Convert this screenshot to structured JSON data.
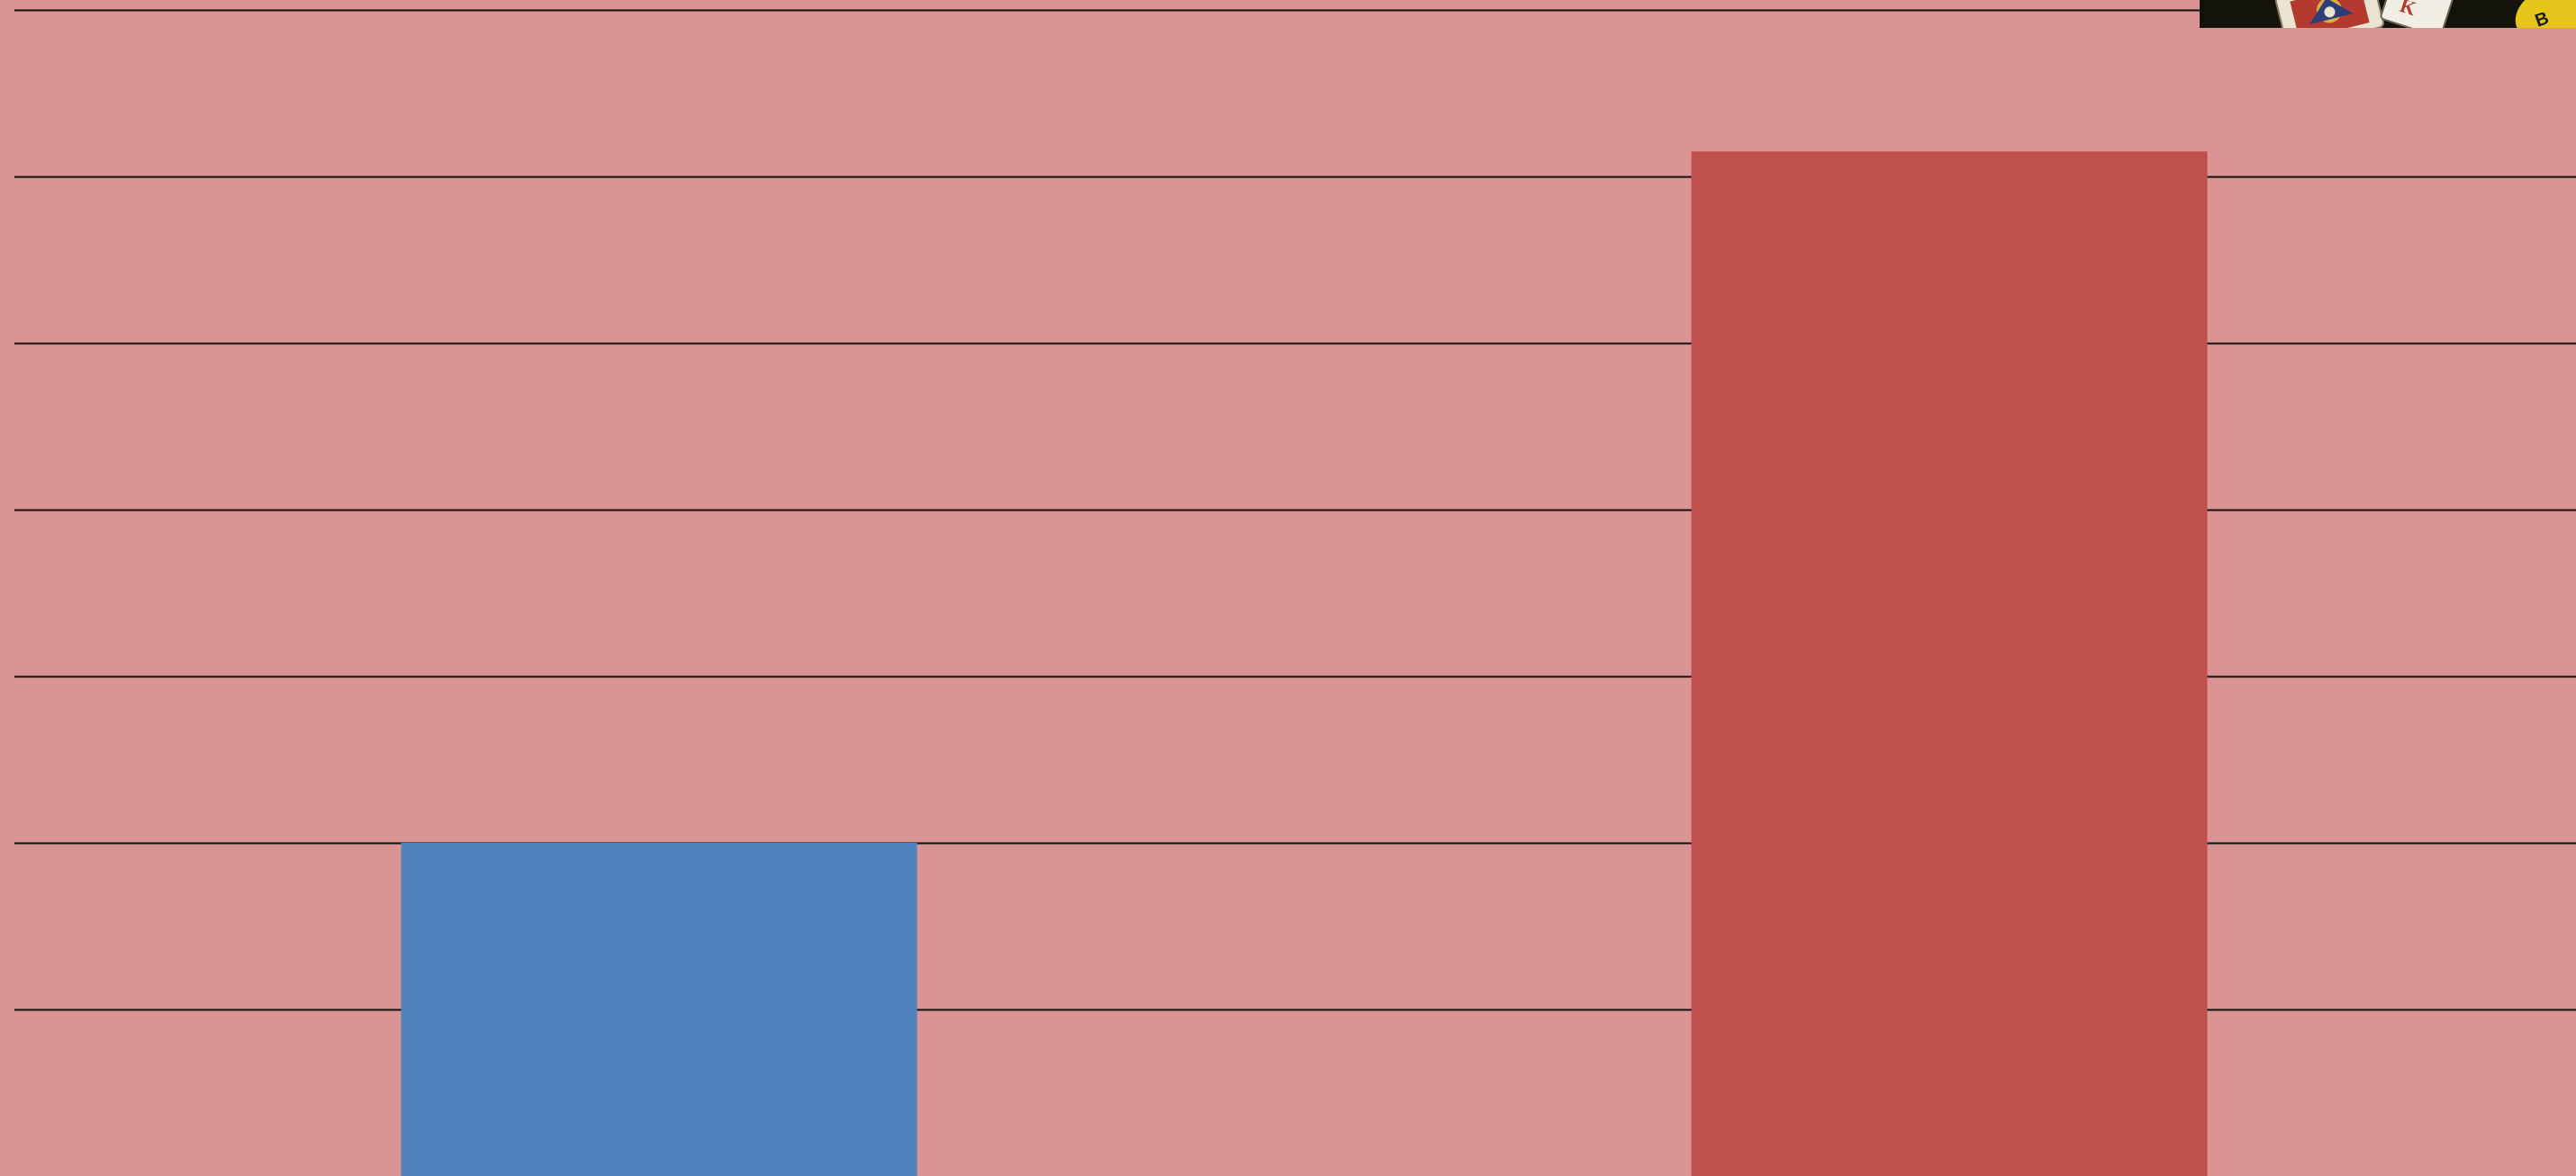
{
  "chart_data": {
    "type": "bar",
    "categories": [
      "",
      ""
    ],
    "values": [
      2,
      6.15
    ],
    "ylim": [
      0,
      7
    ],
    "grid": true,
    "legend": "none",
    "bar_colors": [
      "#4f81bd",
      "#c0504d"
    ]
  },
  "colors": {
    "plot_background": "#da9494",
    "gridline": "#111111"
  },
  "corner_image": {
    "icon": "playing-card-thumbnail-icon"
  }
}
